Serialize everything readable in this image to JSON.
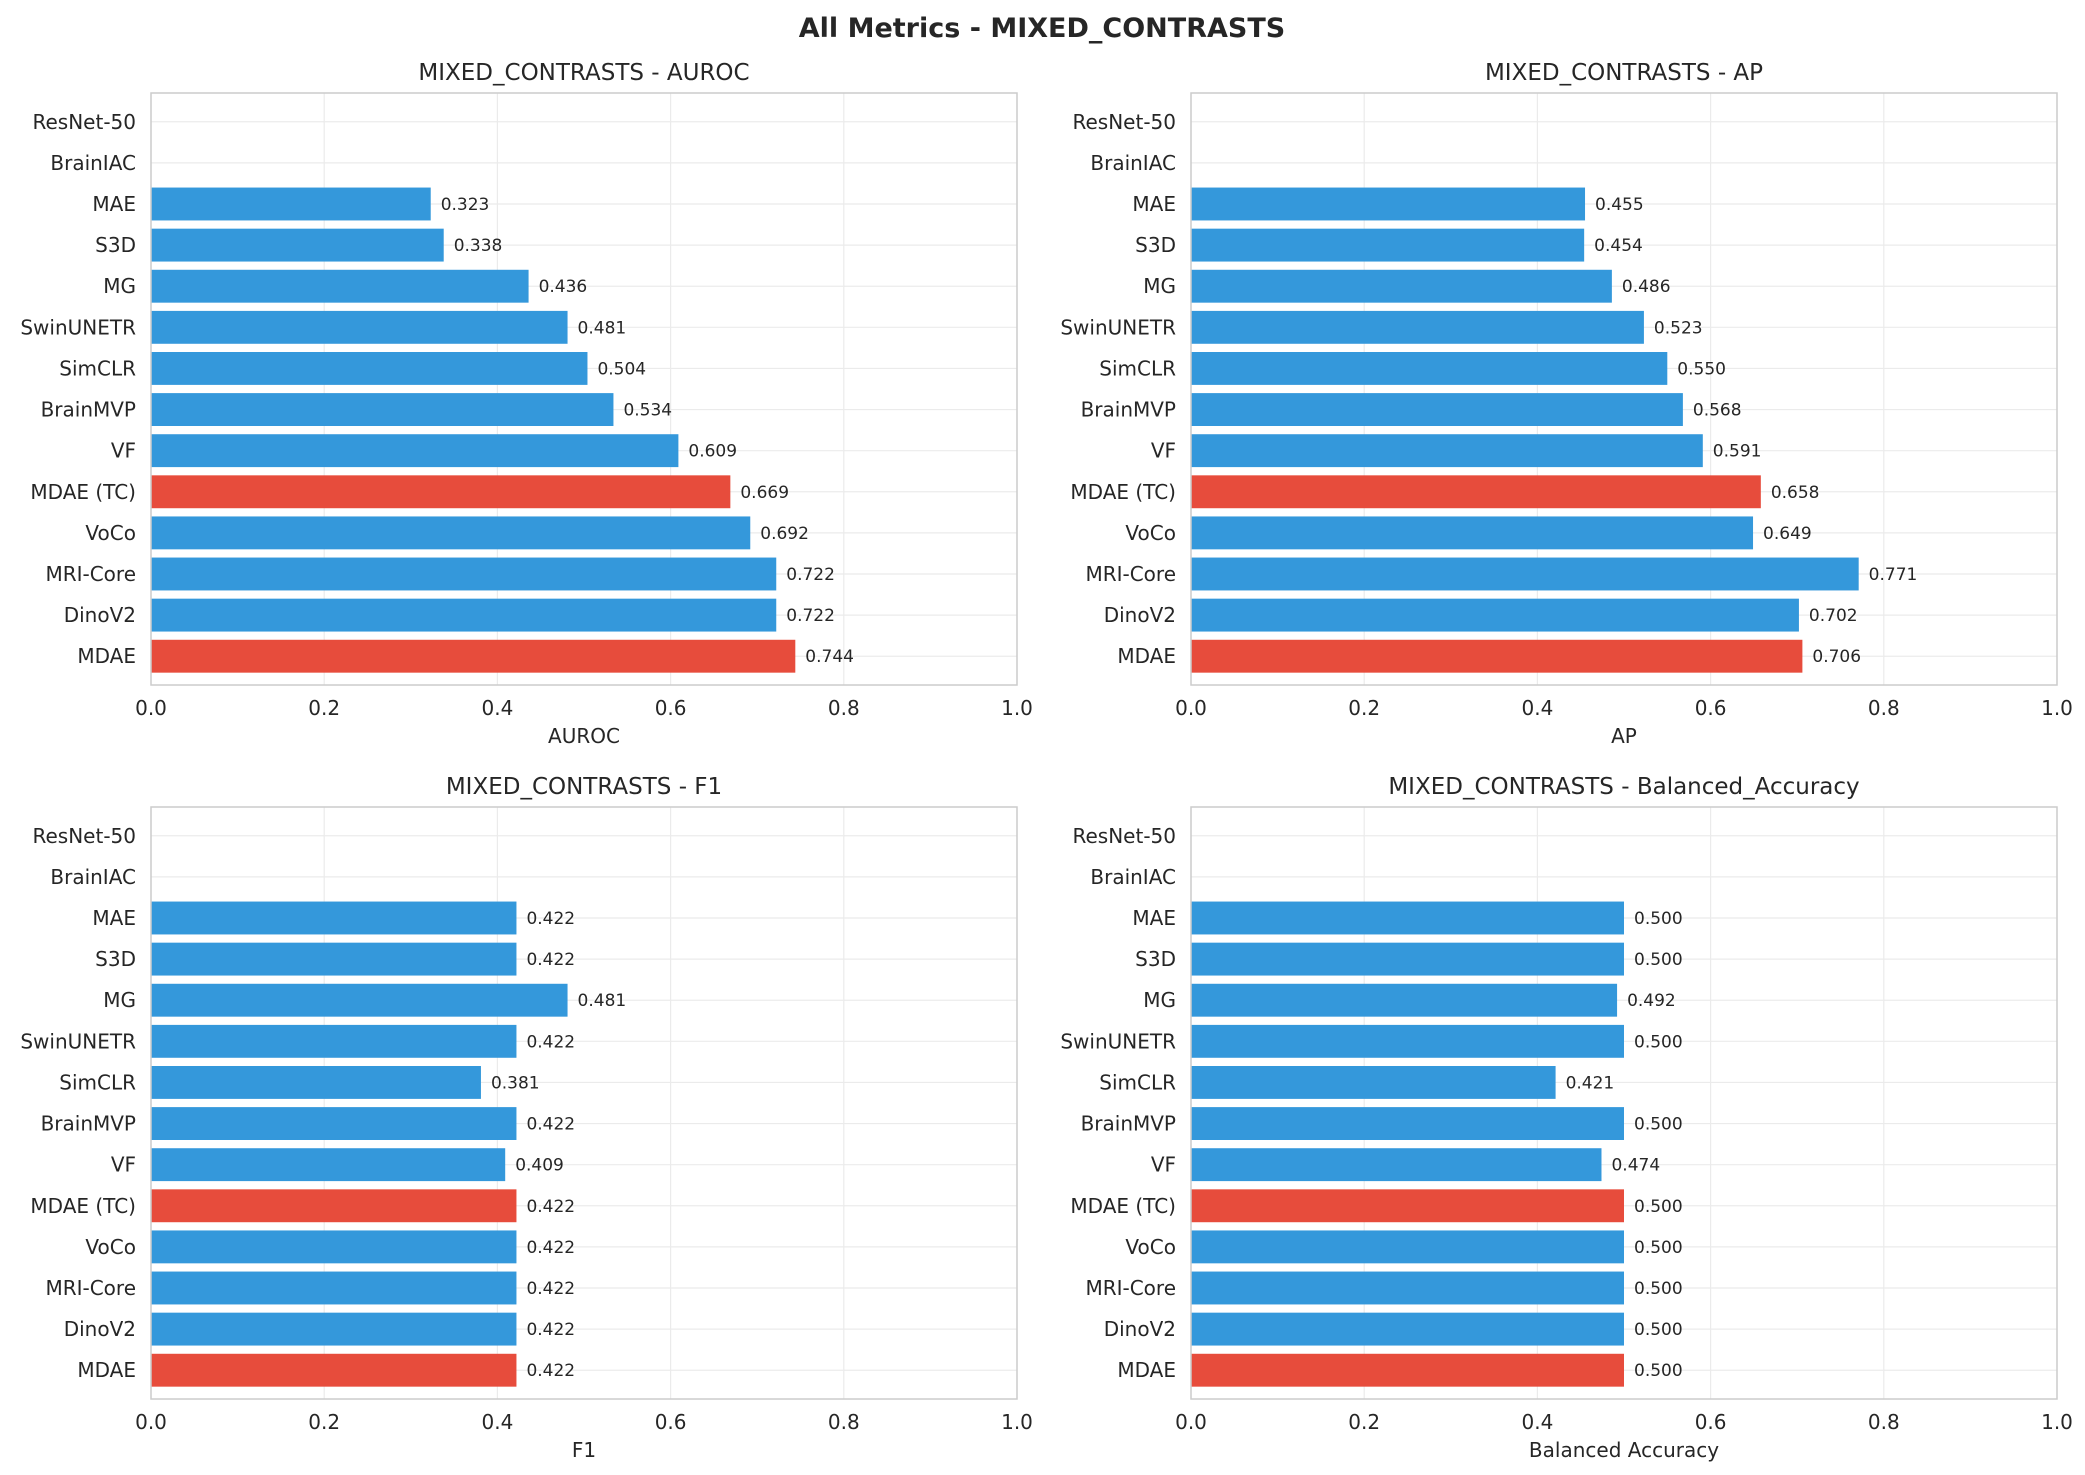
{
  "figure": {
    "title": "All Metrics - MIXED_CONTRASTS"
  },
  "colors": {
    "default_bar": "#3498db",
    "highlight_bar": "#e74c3c",
    "text": "#262626"
  },
  "chart_data": [
    {
      "type": "bar",
      "orientation": "horizontal",
      "title": "MIXED_CONTRASTS - AUROC",
      "xlabel": "AUROC",
      "ylabel": "",
      "xlim": [
        0,
        1
      ],
      "xticks": [
        "0.0",
        "0.2",
        "0.4",
        "0.6",
        "0.8",
        "1.0"
      ],
      "grid": true,
      "categories": [
        "ResNet-50",
        "BrainIAC",
        "MAE",
        "S3D",
        "MG",
        "SwinUNETR",
        "SimCLR",
        "BrainMVP",
        "VF",
        "MDAE (TC)",
        "VoCo",
        "MRI-Core",
        "DinoV2",
        "MDAE"
      ],
      "values": [
        null,
        null,
        0.323,
        0.338,
        0.436,
        0.481,
        0.504,
        0.534,
        0.609,
        0.669,
        0.692,
        0.722,
        0.722,
        0.744
      ],
      "labels": [
        "",
        "",
        "0.323",
        "0.338",
        "0.436",
        "0.481",
        "0.504",
        "0.534",
        "0.609",
        "0.669",
        "0.692",
        "0.722",
        "0.722",
        "0.744"
      ],
      "highlight": [
        "MDAE (TC)",
        "MDAE"
      ]
    },
    {
      "type": "bar",
      "orientation": "horizontal",
      "title": "MIXED_CONTRASTS - AP",
      "xlabel": "AP",
      "ylabel": "",
      "xlim": [
        0,
        1
      ],
      "xticks": [
        "0.0",
        "0.2",
        "0.4",
        "0.6",
        "0.8",
        "1.0"
      ],
      "grid": true,
      "categories": [
        "ResNet-50",
        "BrainIAC",
        "MAE",
        "S3D",
        "MG",
        "SwinUNETR",
        "SimCLR",
        "BrainMVP",
        "VF",
        "MDAE (TC)",
        "VoCo",
        "MRI-Core",
        "DinoV2",
        "MDAE"
      ],
      "values": [
        null,
        null,
        0.455,
        0.454,
        0.486,
        0.523,
        0.55,
        0.568,
        0.591,
        0.658,
        0.649,
        0.771,
        0.702,
        0.706
      ],
      "labels": [
        "",
        "",
        "0.455",
        "0.454",
        "0.486",
        "0.523",
        "0.550",
        "0.568",
        "0.591",
        "0.658",
        "0.649",
        "0.771",
        "0.702",
        "0.706"
      ],
      "highlight": [
        "MDAE (TC)",
        "MDAE"
      ]
    },
    {
      "type": "bar",
      "orientation": "horizontal",
      "title": "MIXED_CONTRASTS - F1",
      "xlabel": "F1",
      "ylabel": "",
      "xlim": [
        0,
        1
      ],
      "xticks": [
        "0.0",
        "0.2",
        "0.4",
        "0.6",
        "0.8",
        "1.0"
      ],
      "grid": true,
      "categories": [
        "ResNet-50",
        "BrainIAC",
        "MAE",
        "S3D",
        "MG",
        "SwinUNETR",
        "SimCLR",
        "BrainMVP",
        "VF",
        "MDAE (TC)",
        "VoCo",
        "MRI-Core",
        "DinoV2",
        "MDAE"
      ],
      "values": [
        null,
        null,
        0.422,
        0.422,
        0.481,
        0.422,
        0.381,
        0.422,
        0.409,
        0.422,
        0.422,
        0.422,
        0.422,
        0.422
      ],
      "labels": [
        "",
        "",
        "0.422",
        "0.422",
        "0.481",
        "0.422",
        "0.381",
        "0.422",
        "0.409",
        "0.422",
        "0.422",
        "0.422",
        "0.422",
        "0.422"
      ],
      "highlight": [
        "MDAE (TC)",
        "MDAE"
      ]
    },
    {
      "type": "bar",
      "orientation": "horizontal",
      "title": "MIXED_CONTRASTS - Balanced_Accuracy",
      "xlabel": "Balanced Accuracy",
      "ylabel": "",
      "xlim": [
        0,
        1
      ],
      "xticks": [
        "0.0",
        "0.2",
        "0.4",
        "0.6",
        "0.8",
        "1.0"
      ],
      "grid": true,
      "categories": [
        "ResNet-50",
        "BrainIAC",
        "MAE",
        "S3D",
        "MG",
        "SwinUNETR",
        "SimCLR",
        "BrainMVP",
        "VF",
        "MDAE (TC)",
        "VoCo",
        "MRI-Core",
        "DinoV2",
        "MDAE"
      ],
      "values": [
        null,
        null,
        0.5,
        0.5,
        0.492,
        0.5,
        0.421,
        0.5,
        0.474,
        0.5,
        0.5,
        0.5,
        0.5,
        0.5
      ],
      "labels": [
        "",
        "",
        "0.500",
        "0.500",
        "0.492",
        "0.500",
        "0.421",
        "0.500",
        "0.474",
        "0.500",
        "0.500",
        "0.500",
        "0.500",
        "0.500"
      ],
      "highlight": [
        "MDAE (TC)",
        "MDAE"
      ]
    }
  ]
}
